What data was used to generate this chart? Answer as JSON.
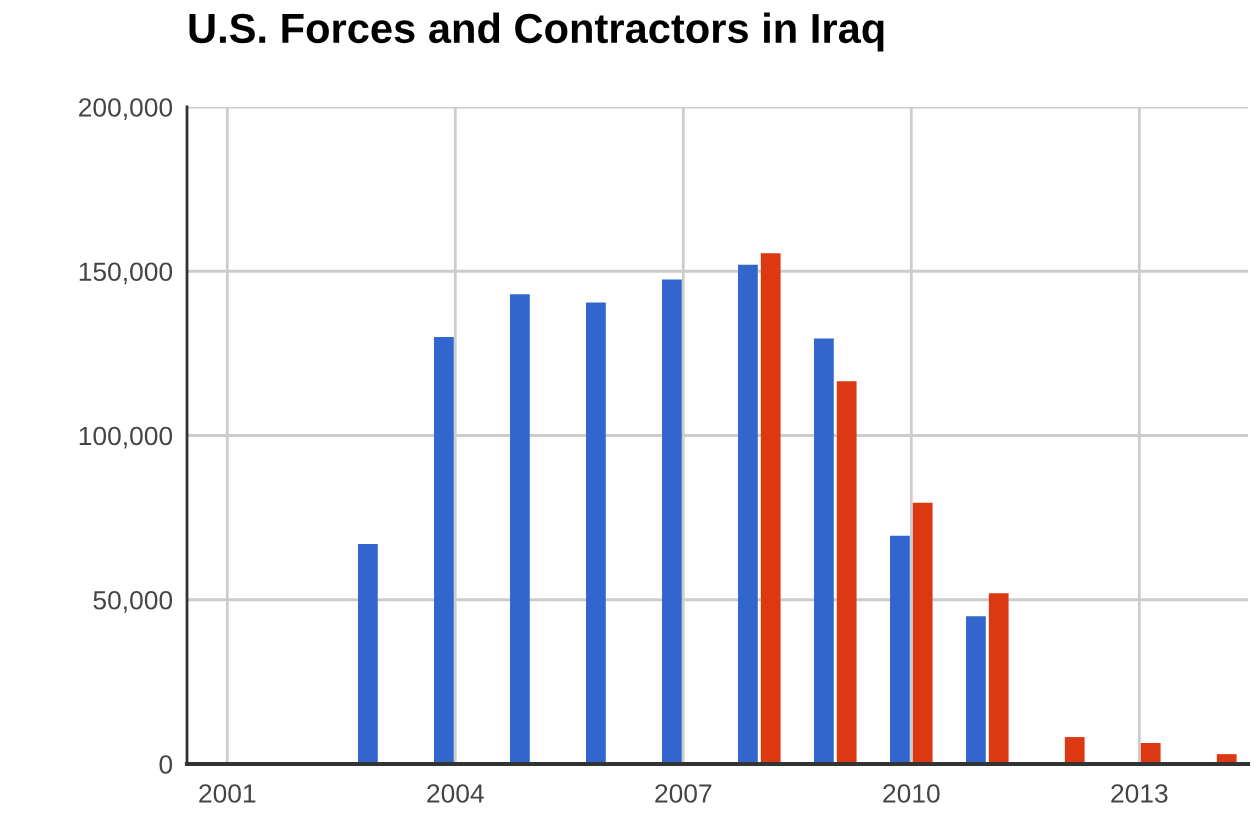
{
  "chart_data": {
    "type": "bar",
    "title": "U.S. Forces and Contractors in Iraq",
    "series": [
      {
        "color": "#3366cc",
        "x": [
          2003,
          2004,
          2005,
          2006,
          2007,
          2008,
          2009,
          2010,
          2011
        ],
        "values": [
          67000,
          130000,
          143000,
          140500,
          147500,
          152000,
          129500,
          69500,
          45000
        ]
      },
      {
        "color": "#dc3912",
        "x": [
          2008,
          2009,
          2010,
          2011,
          2012,
          2013,
          2014
        ],
        "values": [
          155500,
          116500,
          79500,
          52000,
          8200,
          6400,
          3000
        ]
      }
    ],
    "xlim": [
      2000.47,
      2014.43
    ],
    "xticks": [
      2001,
      2004,
      2007,
      2010,
      2013
    ],
    "ylim": [
      0,
      200000
    ],
    "yticks": [
      0,
      {
        "value": 50000,
        "label": "50,000"
      },
      {
        "value": 100000,
        "label": "100,000"
      },
      {
        "value": 150000,
        "label": "150,000"
      },
      {
        "value": 200000,
        "label": "200,000"
      }
    ],
    "grid": true
  }
}
